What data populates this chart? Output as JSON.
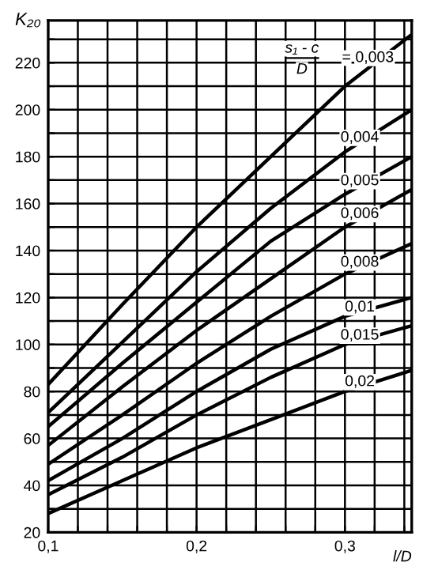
{
  "chart_data": {
    "type": "line",
    "xlabel": "l/D",
    "ylabel": "K₂₀",
    "x": [
      0.1,
      0.15,
      0.2,
      0.25,
      0.3,
      0.345
    ],
    "series": [
      {
        "name": "0,003",
        "color": "#000000",
        "values": [
          83,
          117,
          150,
          180,
          210,
          232
        ]
      },
      {
        "name": "0,004",
        "color": "#000000",
        "values": [
          71,
          101,
          131,
          158,
          182,
          200
        ]
      },
      {
        "name": "0,005",
        "color": "#000000",
        "values": [
          65,
          92,
          118,
          144,
          164,
          180
        ]
      },
      {
        "name": "0,006",
        "color": "#000000",
        "values": [
          57,
          82,
          106,
          128,
          150,
          166
        ]
      },
      {
        "name": "0,008",
        "color": "#000000",
        "values": [
          49,
          70,
          92,
          112,
          130,
          143
        ]
      },
      {
        "name": "0,01",
        "color": "#000000",
        "values": [
          42,
          60,
          80,
          98,
          112,
          120
        ]
      },
      {
        "name": "0,015",
        "color": "#000000",
        "values": [
          36,
          52,
          70,
          86,
          100,
          108
        ]
      },
      {
        "name": "0,02",
        "color": "#000000",
        "values": [
          28,
          42,
          56,
          68,
          80,
          89
        ]
      }
    ],
    "annotations": [
      "s₁ - c",
      "D",
      "="
    ],
    "xlim": [
      0.1,
      0.345
    ],
    "ylim": [
      20,
      238
    ],
    "xticks": [
      {
        "value": 0.1,
        "label": "0,1"
      },
      {
        "value": 0.12,
        "label": null
      },
      {
        "value": 0.14,
        "label": null
      },
      {
        "value": 0.16,
        "label": null
      },
      {
        "value": 0.18,
        "label": null
      },
      {
        "value": 0.2,
        "label": "0,2"
      },
      {
        "value": 0.22,
        "label": null
      },
      {
        "value": 0.24,
        "label": null
      },
      {
        "value": 0.26,
        "label": null
      },
      {
        "value": 0.28,
        "label": null
      },
      {
        "value": 0.3,
        "label": "0,3"
      },
      {
        "value": 0.32,
        "label": null
      },
      {
        "value": 0.34,
        "label": null
      }
    ],
    "yticks": [
      20,
      {
        "value": 30,
        "label": null
      },
      40,
      {
        "value": 50,
        "label": null
      },
      60,
      {
        "value": 70,
        "label": null
      },
      80,
      {
        "value": 90,
        "label": null
      },
      100,
      {
        "value": 110,
        "label": null
      },
      120,
      {
        "value": 130,
        "label": null
      },
      140,
      {
        "value": 150,
        "label": null
      },
      160,
      {
        "value": 170,
        "label": null
      },
      180,
      {
        "value": 190,
        "label": null
      },
      200,
      {
        "value": 210,
        "label": null
      },
      220,
      {
        "value": 230,
        "label": null
      }
    ],
    "grid": true,
    "legend": false,
    "marker": "none",
    "line_style": "solid"
  }
}
